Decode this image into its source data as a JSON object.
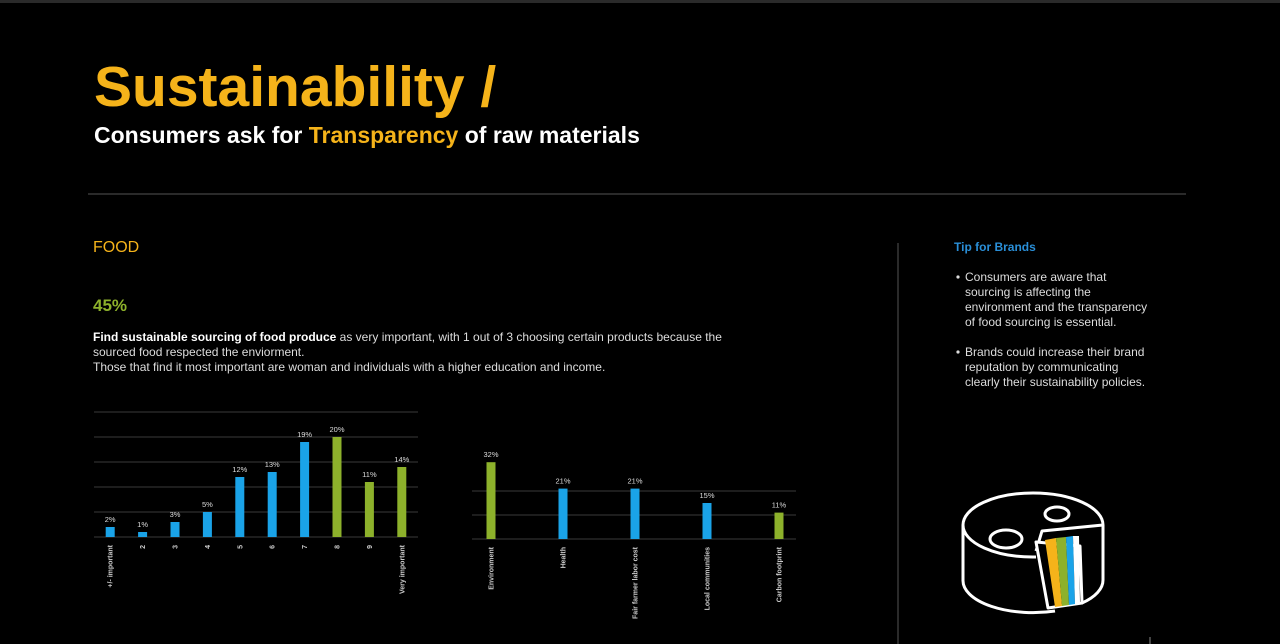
{
  "header": {
    "title": "Sustainability /",
    "subtitle": [
      "Consumers ask for ",
      "Transparency",
      " of raw materials"
    ]
  },
  "section": "FOOD",
  "stat": "45%",
  "paragraph": {
    "bold": "Find sustainable sourcing of food produce",
    "lines": [
      " as very important, with 1 out of 3 choosing certain products because the",
      "sourced food respected the enviorment.",
      "Those that find it most important are woman and individuals with a higher education and income."
    ]
  },
  "tip": {
    "title": "Tip for Brands",
    "bullets": [
      [
        "Consumers are aware that",
        "sourcing is affecting the",
        "environment and the transparency",
        "of food sourcing is essential."
      ],
      [
        "Brands could increase their brand",
        "reputation by communicating",
        "clearly their sustainability policies."
      ]
    ]
  },
  "chart_data": [
    {
      "type": "bar",
      "categories": [
        "+/- important",
        "2",
        "3",
        "4",
        "5",
        "6",
        "7",
        "8",
        "9",
        "Very important"
      ],
      "values": [
        2,
        1,
        3,
        5,
        12,
        13,
        19,
        20,
        11,
        14
      ],
      "value_labels": [
        "2%",
        "1%",
        "3%",
        "5%",
        "12%",
        "13%",
        "19%",
        "20%",
        "11%",
        "14%"
      ],
      "colors": [
        "#1aa3e8",
        "#1aa3e8",
        "#1aa3e8",
        "#1aa3e8",
        "#1aa3e8",
        "#1aa3e8",
        "#1aa3e8",
        "#8db12b",
        "#8db12b",
        "#8db12b"
      ],
      "ylim": [
        0,
        25
      ],
      "yticks": [
        0,
        5,
        10,
        15,
        20,
        25
      ],
      "grid": true
    },
    {
      "type": "bar",
      "categories": [
        "Environment",
        "Health",
        "Fair farmer labor cost",
        "Local communities",
        "Carbon footprint"
      ],
      "values": [
        32,
        21,
        21,
        15,
        11
      ],
      "value_labels": [
        "32%",
        "21%",
        "21%",
        "15%",
        "11%"
      ],
      "colors": [
        "#8db12b",
        "#1aa3e8",
        "#1aa3e8",
        "#1aa3e8",
        "#8db12b"
      ],
      "ylim": [
        0,
        40
      ],
      "yticks": [
        0,
        10,
        20
      ],
      "grid": true
    }
  ]
}
